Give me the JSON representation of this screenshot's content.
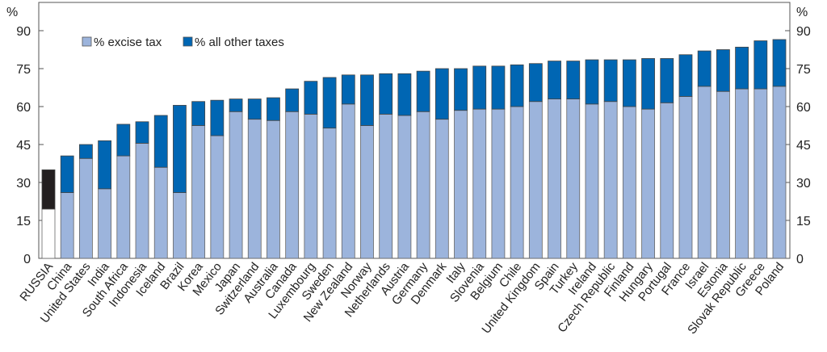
{
  "chart_data": {
    "type": "bar",
    "stacked": true,
    "title": "",
    "xlabel": "",
    "ylabel": "%",
    "ylabel_right": "%",
    "ylim": [
      0,
      95
    ],
    "yticks": [
      0,
      15,
      30,
      45,
      60,
      75,
      90
    ],
    "grid": false,
    "legend_position": "top-left",
    "categories": [
      "RUSSIA",
      "China",
      "United States",
      "India",
      "South Africa",
      "Indonesia",
      "Iceland",
      "Brazil",
      "Korea",
      "Mexico",
      "Japan",
      "Switzerland",
      "Australia",
      "Canada",
      "Luxembourg",
      "Sweden",
      "New Zealand",
      "Norway",
      "Netherlands",
      "Austria",
      "Germany",
      "Denmark",
      "Italy",
      "Slovenia",
      "Belgium",
      "Chile",
      "United Kingdom",
      "Spain",
      "Turkey",
      "Ireland",
      "Czech Republic",
      "Finland",
      "Hungary",
      "Portugal",
      "France",
      "Israel",
      "Estonia",
      "Slovak Republic",
      "Greece",
      "Poland"
    ],
    "series": [
      {
        "name": "% excise tax",
        "color": "#9cb4dc",
        "values": [
          19.5,
          26,
          39.5,
          27.5,
          40.5,
          45.5,
          36,
          26,
          52.5,
          48.5,
          58,
          55,
          54.5,
          58,
          57,
          51.5,
          61,
          52.5,
          57,
          56.5,
          58,
          55,
          58.5,
          59,
          59,
          60,
          62,
          63,
          63,
          61,
          62,
          60,
          59,
          61.5,
          64,
          68,
          66,
          67,
          67,
          68
        ]
      },
      {
        "name": "% all other taxes",
        "color": "#0066b3",
        "values": [
          15.5,
          14.5,
          5.5,
          19,
          12.5,
          8.5,
          20.5,
          34.5,
          9.5,
          14,
          5,
          8,
          9,
          9,
          13,
          20,
          11.5,
          20,
          16,
          16.5,
          16,
          20,
          16.5,
          17,
          17,
          16.5,
          15,
          15,
          15,
          17.5,
          16.5,
          18.5,
          20,
          17.5,
          16.5,
          14,
          16.5,
          16.5,
          19,
          18.5
        ]
      }
    ],
    "highlight": {
      "category": "RUSSIA",
      "excise_color": "#ffffff",
      "other_color": "#231f20"
    }
  }
}
